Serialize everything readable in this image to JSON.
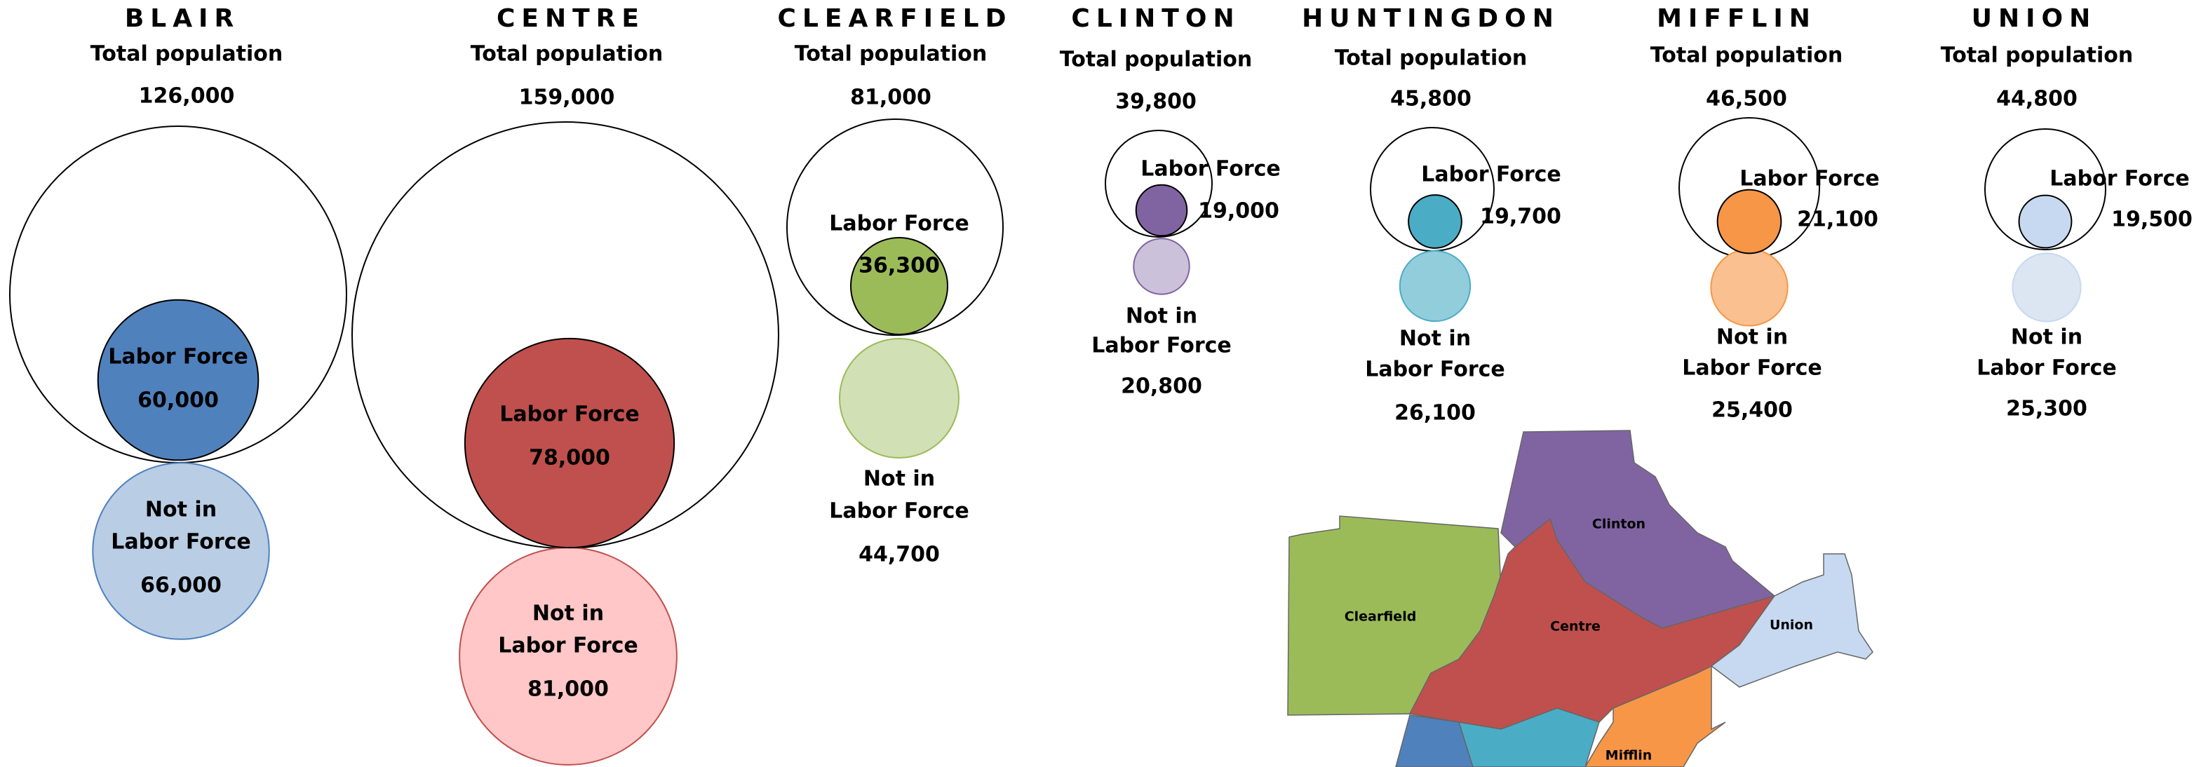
{
  "counties": [
    {
      "name": "BLAIR",
      "total_caption": "Total population",
      "total": {
        "value": 126000,
        "label": "126,000"
      },
      "labor_force_caption": "Labor Force",
      "labor_force": {
        "value": 60000,
        "label": "60,000"
      },
      "not_in_caption": [
        "Not in",
        "Labor Force"
      ],
      "not_in": {
        "value": 66000,
        "label": "66,000"
      },
      "color": "#4f81bd",
      "light_color": "#b9cde5"
    },
    {
      "name": "CENTRE",
      "total_caption": "Total population",
      "total": {
        "value": 159000,
        "label": "159,000"
      },
      "labor_force_caption": "Labor Force",
      "labor_force": {
        "value": 78000,
        "label": "78,000"
      },
      "not_in_caption": [
        "Not in",
        "Labor Force"
      ],
      "not_in": {
        "value": 81000,
        "label": "81,000"
      },
      "color": "#c0504d",
      "light_color": "#ffc7c7"
    },
    {
      "name": "CLEARFIELD",
      "total_caption": "Total population",
      "total": {
        "value": 81000,
        "label": "81,000"
      },
      "labor_force_caption": "Labor Force",
      "labor_force": {
        "value": 36300,
        "label": "36,300"
      },
      "not_in_caption": [
        "Not in",
        "Labor Force"
      ],
      "not_in": {
        "value": 44700,
        "label": "44,700"
      },
      "color": "#9bbb59",
      "light_color": "#d1e0b5"
    },
    {
      "name": "CLINTON",
      "total_caption": "Total population",
      "total": {
        "value": 39800,
        "label": "39,800"
      },
      "labor_force_caption": "Labor Force",
      "labor_force": {
        "value": 19000,
        "label": "19,000"
      },
      "not_in_caption": [
        "Not in",
        "Labor Force"
      ],
      "not_in": {
        "value": 20800,
        "label": "20,800"
      },
      "color": "#8064a2",
      "light_color": "#ccc1da"
    },
    {
      "name": "HUNTINGDON",
      "total_caption": "Total population",
      "total": {
        "value": 45800,
        "label": "45,800"
      },
      "labor_force_caption": "Labor Force",
      "labor_force": {
        "value": 19700,
        "label": "19,700"
      },
      "not_in_caption": [
        "Not in",
        "Labor Force"
      ],
      "not_in": {
        "value": 26100,
        "label": "26,100"
      },
      "color": "#4bacc6",
      "light_color": "#92cddc"
    },
    {
      "name": "MIFFLIN",
      "total_caption": "Total population",
      "total": {
        "value": 46500,
        "label": "46,500"
      },
      "labor_force_caption": "Labor Force",
      "labor_force": {
        "value": 21100,
        "label": "21,100"
      },
      "not_in_caption": [
        "Not in",
        "Labor Force"
      ],
      "not_in": {
        "value": 25400,
        "label": "25,400"
      },
      "color": "#f79646",
      "light_color": "#fac090"
    },
    {
      "name": "UNION",
      "total_caption": "Total population",
      "total": {
        "value": 44800,
        "label": "44,800"
      },
      "labor_force_caption": "Labor Force",
      "labor_force": {
        "value": 19500,
        "label": "19,500"
      },
      "not_in_caption": [
        "Not in",
        "Labor Force"
      ],
      "not_in": {
        "value": 25300,
        "label": "25,300"
      },
      "color": "#c6d9f1",
      "light_color": "#dce6f2"
    }
  ],
  "map": {
    "labels": [
      "Clearfield",
      "Clinton",
      "Centre",
      "Union",
      "Mifflin"
    ]
  }
}
